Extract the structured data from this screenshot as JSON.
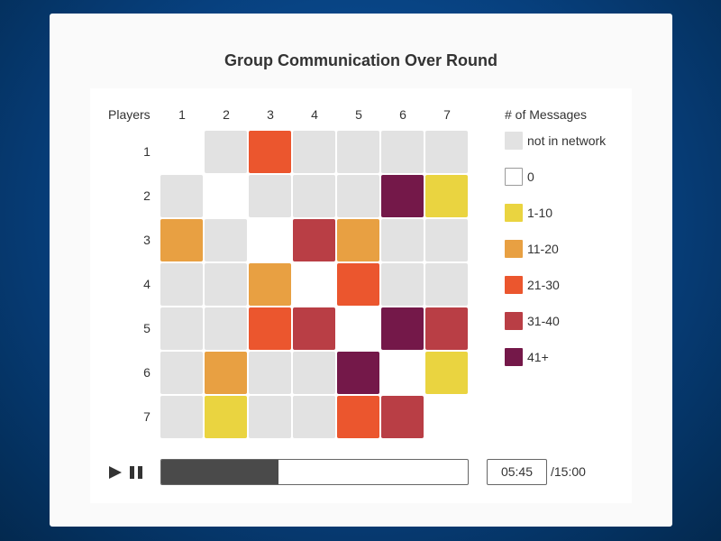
{
  "title": "Group Communication Over Round",
  "row_header": "Players",
  "legend": {
    "title": "# of Messages",
    "items": [
      {
        "label": "not in network",
        "color": "#e2e2e2"
      },
      {
        "label": "0",
        "color": "#ffffff"
      },
      {
        "label": "1-10",
        "color": "#ead440"
      },
      {
        "label": "11-20",
        "color": "#e8a042"
      },
      {
        "label": "21-30",
        "color": "#eb562e"
      },
      {
        "label": "31-40",
        "color": "#b93e45"
      },
      {
        "label": "41+",
        "color": "#741849"
      }
    ]
  },
  "playback": {
    "current_time": "05:45",
    "total_time": "/15:00",
    "progress_fraction": 0.383
  },
  "chart_data": {
    "type": "heatmap",
    "title": "Group Communication Over Round",
    "x_label": "",
    "y_label": "Players",
    "x": [
      "1",
      "2",
      "3",
      "4",
      "5",
      "6",
      "7"
    ],
    "y": [
      "1",
      "2",
      "3",
      "4",
      "5",
      "6",
      "7"
    ],
    "categories": [
      "not in network",
      "0",
      "1-10",
      "11-20",
      "21-30",
      "31-40",
      "41+"
    ],
    "matrix": [
      [
        "0",
        "not in network",
        "21-30",
        "not in network",
        "not in network",
        "not in network",
        "not in network"
      ],
      [
        "not in network",
        "0",
        "not in network",
        "not in network",
        "not in network",
        "41+",
        "1-10"
      ],
      [
        "11-20",
        "not in network",
        "0",
        "31-40",
        "11-20",
        "not in network",
        "not in network"
      ],
      [
        "not in network",
        "not in network",
        "11-20",
        "0",
        "21-30",
        "not in network",
        "not in network"
      ],
      [
        "not in network",
        "not in network",
        "21-30",
        "31-40",
        "0",
        "41+",
        "31-40"
      ],
      [
        "not in network",
        "11-20",
        "not in network",
        "not in network",
        "41+",
        "0",
        "1-10"
      ],
      [
        "not in network",
        "1-10",
        "not in network",
        "not in network",
        "21-30",
        "31-40",
        "0"
      ]
    ]
  }
}
